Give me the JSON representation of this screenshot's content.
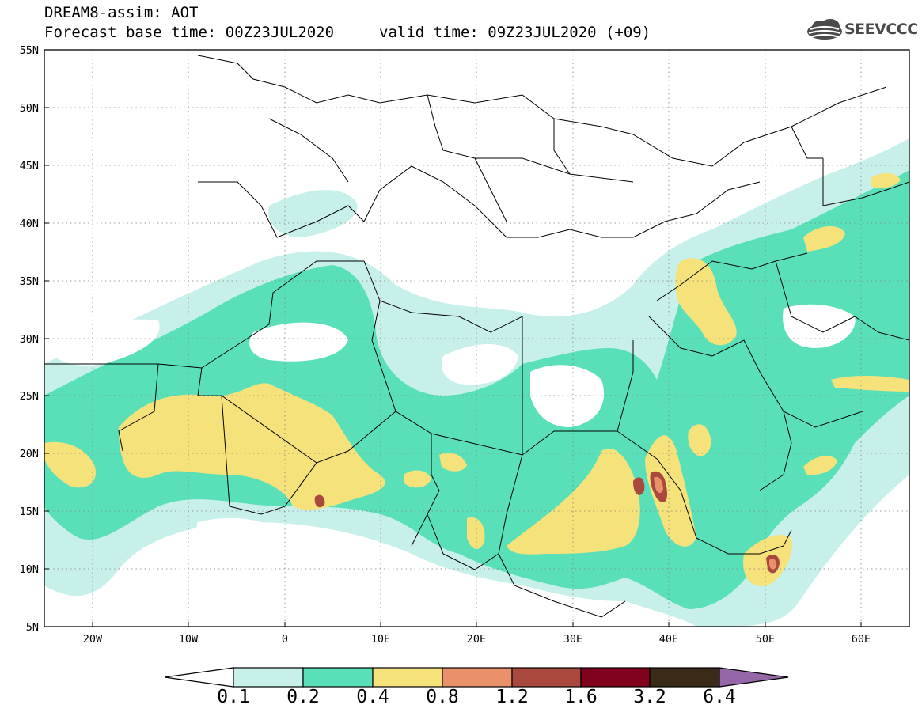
{
  "title": {
    "model": "DREAM8-assim: AOT",
    "base_time": "Forecast base time: 00Z23JUL2020",
    "valid_time": "valid time: 09Z23JUL2020 (+09)"
  },
  "logo": {
    "text": "SEEVCCC",
    "icon": "cloud-icon"
  },
  "map": {
    "lat_labels": [
      "55N",
      "50N",
      "45N",
      "40N",
      "35N",
      "30N",
      "25N",
      "20N",
      "15N",
      "10N",
      "5N"
    ],
    "lon_labels": [
      "20W",
      "10W",
      "0",
      "10E",
      "20E",
      "30E",
      "40E",
      "50E",
      "60E"
    ],
    "lon_range": [
      -25,
      65
    ],
    "lat_range": [
      5,
      55
    ],
    "grid": "dotted"
  },
  "colorbar": {
    "labels": [
      "0.1",
      "0.2",
      "0.4",
      "0.8",
      "1.2",
      "1.6",
      "3.2",
      "6.4"
    ],
    "colors": [
      "#c8f0ea",
      "#5ae0b9",
      "#f6e27a",
      "#e9916a",
      "#a9493d",
      "#80021c",
      "#3a2a18",
      "#9467a8"
    ],
    "below_color": "#ffffff"
  },
  "colors": {
    "c1": "#c8f0ea",
    "c2": "#5ae0b9",
    "c3": "#f6e27a",
    "c4": "#e9916a",
    "c5": "#a9493d",
    "c6": "#80021c"
  }
}
